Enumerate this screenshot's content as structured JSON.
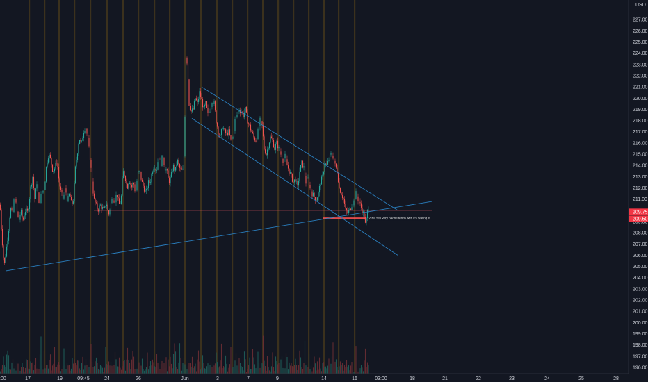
{
  "chart_data": {
    "type": "candlestick",
    "currency": "USD",
    "y_range": [
      195.5,
      228.5
    ],
    "y_ticks": [
      "196.00",
      "197.00",
      "198.00",
      "199.00",
      "200.00",
      "201.00",
      "202.00",
      "203.00",
      "204.00",
      "205.00",
      "206.00",
      "207.00",
      "208.00",
      "209.00",
      "210.00",
      "211.00",
      "212.00",
      "213.00",
      "214.00",
      "215.00",
      "216.00",
      "217.00",
      "218.00",
      "219.00",
      "220.00",
      "221.00",
      "222.00",
      "223.00",
      "224.00",
      "225.00",
      "226.00",
      "227.00"
    ],
    "x_labels": [
      {
        "text": "09:00",
        "slot": 0
      },
      {
        "text": "17",
        "slot": 40
      },
      {
        "text": "19",
        "slot": 86
      },
      {
        "text": "09:45",
        "slot": 120
      },
      {
        "text": "24",
        "slot": 154
      },
      {
        "text": "26",
        "slot": 199
      },
      {
        "text": "Jun",
        "slot": 266
      },
      {
        "text": "3",
        "slot": 313
      },
      {
        "text": "7",
        "slot": 357
      },
      {
        "text": "9",
        "slot": 399
      },
      {
        "text": "14",
        "slot": 466
      },
      {
        "text": "16",
        "slot": 510
      },
      {
        "text": "03:00",
        "slot": 548
      },
      {
        "text": "18",
        "slot": 593
      },
      {
        "text": "21",
        "slot": 640
      },
      {
        "text": "22",
        "slot": 688
      },
      {
        "text": "23",
        "slot": 736
      },
      {
        "text": "24",
        "slot": 787
      },
      {
        "text": "25",
        "slot": 836
      },
      {
        "text": "28",
        "slot": 886
      }
    ],
    "session_slots": [
      42,
      64,
      85,
      107,
      130,
      154,
      177,
      199,
      222,
      244,
      266,
      289,
      312,
      334,
      356,
      378,
      400,
      422,
      444,
      466,
      487,
      510
    ],
    "price_path": [
      [
        0,
        210.5
      ],
      [
        3,
        207.5
      ],
      [
        6,
        205.0
      ],
      [
        9,
        206.5
      ],
      [
        12,
        208.0
      ],
      [
        15,
        210.2
      ],
      [
        18,
        209.5
      ],
      [
        21,
        211.5
      ],
      [
        24,
        210.0
      ],
      [
        27,
        209.0
      ],
      [
        30,
        210.0
      ],
      [
        33,
        209.0
      ],
      [
        36,
        210.0
      ],
      [
        40,
        209.8
      ],
      [
        44,
        212.0
      ],
      [
        47,
        213.0
      ],
      [
        50,
        211.0
      ],
      [
        53,
        212.5
      ],
      [
        56,
        210.5
      ],
      [
        60,
        211.5
      ],
      [
        64,
        212.0
      ],
      [
        67,
        214.2
      ],
      [
        70,
        215.0
      ],
      [
        73,
        214.5
      ],
      [
        76,
        213.5
      ],
      [
        79,
        213.8
      ],
      [
        82,
        214.5
      ],
      [
        85,
        212.5
      ],
      [
        88,
        211.5
      ],
      [
        91,
        211.0
      ],
      [
        94,
        212.0
      ],
      [
        97,
        210.8
      ],
      [
        100,
        211.5
      ],
      [
        103,
        210.5
      ],
      [
        106,
        211.0
      ],
      [
        108,
        213.5
      ],
      [
        111,
        215.0
      ],
      [
        114,
        216.5
      ],
      [
        117,
        215.8
      ],
      [
        120,
        217.0
      ],
      [
        123,
        217.5
      ],
      [
        126,
        216.5
      ],
      [
        129,
        215.0
      ],
      [
        132,
        213.0
      ],
      [
        135,
        211.0
      ],
      [
        138,
        210.5
      ],
      [
        141,
        210.0
      ],
      [
        144,
        210.5
      ],
      [
        147,
        210.2
      ],
      [
        150,
        210.0
      ],
      [
        153,
        210.8
      ],
      [
        156,
        209.5
      ],
      [
        159,
        210.5
      ],
      [
        162,
        211.2
      ],
      [
        165,
        210.8
      ],
      [
        168,
        211.5
      ],
      [
        171,
        210.5
      ],
      [
        174,
        210.8
      ],
      [
        177,
        213.5
      ],
      [
        180,
        213.0
      ],
      [
        183,
        212.0
      ],
      [
        186,
        212.8
      ],
      [
        189,
        212.0
      ],
      [
        192,
        212.5
      ],
      [
        195,
        211.5
      ],
      [
        198,
        213.2
      ],
      [
        201,
        213.5
      ],
      [
        204,
        212.5
      ],
      [
        207,
        212.0
      ],
      [
        210,
        211.5
      ],
      [
        213,
        212.5
      ],
      [
        216,
        212.5
      ],
      [
        219,
        213.5
      ],
      [
        222,
        214.0
      ],
      [
        225,
        213.5
      ],
      [
        228,
        214.8
      ],
      [
        231,
        214.0
      ],
      [
        234,
        215.0
      ],
      [
        237,
        213.8
      ],
      [
        240,
        213.5
      ],
      [
        243,
        212.5
      ],
      [
        246,
        213.0
      ],
      [
        249,
        214.0
      ],
      [
        252,
        213.5
      ],
      [
        255,
        214.5
      ],
      [
        258,
        213.8
      ],
      [
        261,
        213.5
      ],
      [
        264,
        213.6
      ],
      [
        266,
        218.5
      ],
      [
        267,
        223.5
      ],
      [
        268,
        224.0
      ],
      [
        270,
        222.5
      ],
      [
        272,
        219.5
      ],
      [
        275,
        218.8
      ],
      [
        278,
        219.0
      ],
      [
        281,
        220.0
      ],
      [
        284,
        219.5
      ],
      [
        287,
        220.5
      ],
      [
        290,
        219.8
      ],
      [
        293,
        219.0
      ],
      [
        296,
        219.5
      ],
      [
        299,
        218.5
      ],
      [
        302,
        219.0
      ],
      [
        305,
        219.8
      ],
      [
        308,
        219.5
      ],
      [
        311,
        218.0
      ],
      [
        314,
        217.0
      ],
      [
        317,
        216.5
      ],
      [
        320,
        217.5
      ],
      [
        323,
        217.0
      ],
      [
        326,
        216.8
      ],
      [
        329,
        217.0
      ],
      [
        332,
        216.2
      ],
      [
        335,
        216.5
      ],
      [
        338,
        218.0
      ],
      [
        341,
        218.5
      ],
      [
        344,
        219.0
      ],
      [
        347,
        218.8
      ],
      [
        350,
        218.5
      ],
      [
        353,
        219.0
      ],
      [
        356,
        218.0
      ],
      [
        359,
        217.5
      ],
      [
        362,
        217.0
      ],
      [
        365,
        216.5
      ],
      [
        368,
        216.2
      ],
      [
        371,
        217.0
      ],
      [
        374,
        218.0
      ],
      [
        377,
        217.5
      ],
      [
        380,
        215.5
      ],
      [
        383,
        215.0
      ],
      [
        386,
        215.8
      ],
      [
        389,
        216.5
      ],
      [
        392,
        216.2
      ],
      [
        395,
        215.5
      ],
      [
        398,
        216.0
      ],
      [
        401,
        215.5
      ],
      [
        404,
        215.0
      ],
      [
        407,
        214.5
      ],
      [
        410,
        214.8
      ],
      [
        413,
        214.0
      ],
      [
        416,
        213.5
      ],
      [
        419,
        213.0
      ],
      [
        422,
        212.5
      ],
      [
        425,
        212.8
      ],
      [
        428,
        212.0
      ],
      [
        431,
        213.5
      ],
      [
        434,
        214.2
      ],
      [
        437,
        213.8
      ],
      [
        440,
        212.5
      ],
      [
        443,
        212.8
      ],
      [
        446,
        212.0
      ],
      [
        449,
        211.5
      ],
      [
        452,
        211.2
      ],
      [
        455,
        211.0
      ],
      [
        458,
        211.5
      ],
      [
        461,
        212.5
      ],
      [
        464,
        213.0
      ],
      [
        467,
        214.2
      ],
      [
        470,
        214.0
      ],
      [
        473,
        214.5
      ],
      [
        476,
        215.0
      ],
      [
        479,
        214.8
      ],
      [
        482,
        214.0
      ],
      [
        485,
        213.5
      ],
      [
        488,
        212.0
      ],
      [
        491,
        211.5
      ],
      [
        494,
        211.0
      ],
      [
        497,
        210.0
      ],
      [
        500,
        209.8
      ],
      [
        503,
        210.0
      ],
      [
        506,
        210.5
      ],
      [
        509,
        210.8
      ],
      [
        512,
        211.5
      ],
      [
        515,
        211.0
      ],
      [
        518,
        210.5
      ],
      [
        521,
        210.0
      ],
      [
        524,
        209.5
      ],
      [
        526,
        208.5
      ],
      [
        528,
        209.8
      ],
      [
        530,
        210.3
      ]
    ],
    "volume_series": [
      3,
      5,
      9,
      6,
      4,
      3,
      7,
      12,
      8,
      4,
      3,
      5,
      15,
      6,
      3,
      4,
      8,
      5,
      3,
      2,
      6,
      10,
      4,
      3,
      7,
      5,
      9,
      4,
      3,
      6,
      11,
      5,
      4,
      3,
      8,
      6,
      2,
      4,
      7,
      13
    ],
    "horizontal_levels": [
      {
        "price": 210.0,
        "from_slot": 135,
        "to_slot": 622,
        "color": "#e0565f"
      },
      {
        "price": 209.3,
        "from_slot": 465,
        "to_slot": 527,
        "color": "#ff5252",
        "width": 1.6
      }
    ],
    "trend_lines": [
      {
        "from": [
          8,
          204.6
        ],
        "to": [
          622,
          210.8
        ]
      },
      {
        "from": [
          290,
          221.0
        ],
        "to": [
          572,
          210.0
        ]
      },
      {
        "from": [
          276,
          218.2
        ],
        "to": [
          572,
          206.0
        ]
      }
    ],
    "annotation": {
      "text": "20% +ev very paone tends with it's seeing it...",
      "slot": 529,
      "price": 209.3
    },
    "last_price": "209.75",
    "last_price_2": "209.50",
    "price_tag_color": "#f23645",
    "up_color": "#26a69a",
    "down_color": "#ef5350",
    "line_color": "#2a7fbf"
  }
}
